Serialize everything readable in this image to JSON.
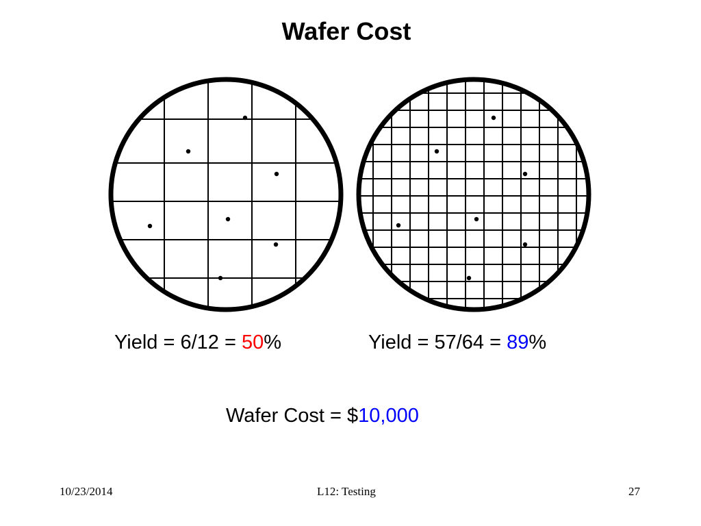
{
  "slide": {
    "title": "Wafer Cost"
  },
  "wafers": [
    {
      "name": "coarse-grid",
      "grid_divisions": 5,
      "defects": 7,
      "yield_prefix": "Yield = 6/12 = ",
      "yield_value": "50",
      "yield_suffix": "%",
      "yield_color": "#ff0000"
    },
    {
      "name": "fine-grid",
      "grid_divisions": 11,
      "defects": 7,
      "yield_prefix": "Yield = 57/64 = ",
      "yield_value": "89",
      "yield_suffix": "%",
      "yield_color": "#0000ff"
    }
  ],
  "cost": {
    "prefix": "Wafer Cost = $",
    "value": "10,000",
    "value_color": "#0000ff"
  },
  "footer": {
    "date": "10/23/2014",
    "label": "L12: Testing",
    "page": "27"
  }
}
